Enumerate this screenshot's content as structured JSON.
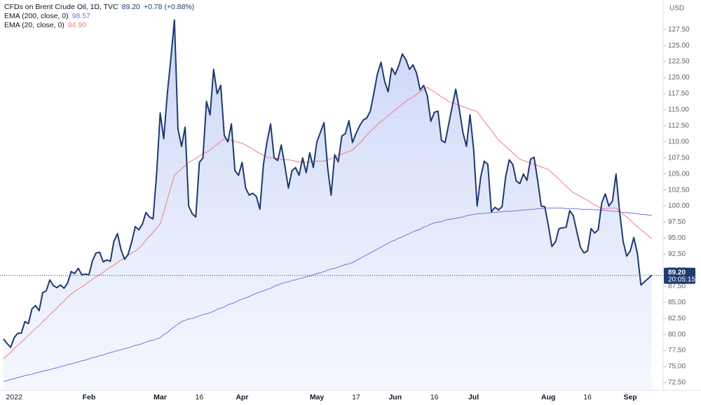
{
  "chart_data": {
    "type": "line",
    "y_unit": "USD",
    "countdown": "20:05:15",
    "ylim": [
      71.3,
      132.1
    ],
    "yticks": [
      {
        "value": 72.5,
        "label": "72.50"
      },
      {
        "value": 75,
        "label": "75.00"
      },
      {
        "value": 77.5,
        "label": "77.50"
      },
      {
        "value": 80,
        "label": "80.00"
      },
      {
        "value": 82.5,
        "label": "82.50"
      },
      {
        "value": 85,
        "label": "85.00"
      },
      {
        "value": 87.5,
        "label": "87.50"
      },
      {
        "value": 90,
        "label": "90.00"
      },
      {
        "value": 92.5,
        "label": "92.50"
      },
      {
        "value": 95,
        "label": "95.00"
      },
      {
        "value": 97.5,
        "label": "97.50"
      },
      {
        "value": 100,
        "label": "100.00"
      },
      {
        "value": 102.5,
        "label": "102.50"
      },
      {
        "value": 105,
        "label": "105.00"
      },
      {
        "value": 107.5,
        "label": "107.50"
      },
      {
        "value": 110,
        "label": "110.00"
      },
      {
        "value": 112.5,
        "label": "112.50"
      },
      {
        "value": 115,
        "label": "115.00"
      },
      {
        "value": 117.5,
        "label": "117.50"
      },
      {
        "value": 120,
        "label": "120.00"
      },
      {
        "value": 122.5,
        "label": "122.50"
      },
      {
        "value": 125,
        "label": "125.00"
      },
      {
        "value": 127.5,
        "label": "127.50"
      }
    ],
    "grid": false,
    "categories": [
      null,
      null,
      null,
      "2022",
      null,
      null,
      null,
      null,
      null,
      null,
      null,
      null,
      null,
      null,
      null,
      null,
      null,
      null,
      null,
      null,
      null,
      null,
      null,
      null,
      "Feb",
      null,
      null,
      null,
      null,
      null,
      null,
      null,
      null,
      null,
      null,
      null,
      null,
      null,
      null,
      null,
      null,
      null,
      null,
      null,
      "Mar",
      null,
      null,
      null,
      null,
      null,
      null,
      null,
      null,
      null,
      null,
      "16",
      null,
      null,
      null,
      null,
      null,
      null,
      null,
      null,
      null,
      null,
      null,
      "Apr",
      null,
      null,
      null,
      null,
      null,
      null,
      null,
      null,
      null,
      null,
      null,
      null,
      null,
      null,
      null,
      null,
      null,
      null,
      null,
      null,
      "May",
      null,
      null,
      null,
      null,
      null,
      null,
      null,
      null,
      null,
      null,
      "17",
      null,
      null,
      null,
      null,
      null,
      null,
      null,
      null,
      null,
      null,
      "Jun",
      null,
      null,
      null,
      null,
      null,
      null,
      null,
      null,
      null,
      null,
      "16",
      null,
      null,
      null,
      null,
      null,
      null,
      null,
      null,
      null,
      null,
      "Jul",
      null,
      null,
      null,
      null,
      null,
      null,
      null,
      null,
      null,
      null,
      null,
      null,
      null,
      null,
      null,
      null,
      null,
      null,
      null,
      null,
      "Aug",
      null,
      null,
      null,
      null,
      null,
      null,
      null,
      null,
      null,
      null,
      "16",
      null,
      null,
      null,
      null,
      null,
      null,
      null,
      null,
      null,
      null,
      null,
      "Sep",
      null,
      null,
      null,
      null,
      null,
      null
    ],
    "series": [
      {
        "name": "CFDs on Brent Crude Oil, 1D, TVC",
        "color": "#1e3a6e",
        "fill": true,
        "last_label": "89.20",
        "change_label": "+0.78 (+0.88%)",
        "values": [
          79.3,
          78.6,
          78.0,
          79.5,
          80.2,
          80.2,
          82.0,
          81.7,
          84.0,
          84.5,
          83.7,
          86.5,
          86.8,
          88.5,
          87.6,
          87.3,
          87.7,
          87.2,
          88.0,
          89.8,
          89.5,
          90.3,
          89.3,
          89.4,
          89.3,
          91.5,
          92.7,
          92.8,
          91.3,
          91.6,
          91.4,
          94.5,
          95.7,
          93.2,
          91.7,
          92.5,
          94.4,
          96.8,
          96.3,
          97.2,
          99.0,
          98.3,
          98.0,
          105.0,
          114.5,
          110.5,
          117.5,
          123.0,
          129.0,
          112.0,
          109.3,
          112.3,
          100.0,
          98.8,
          98.3,
          106.8,
          107.5,
          116.3,
          114.2,
          121.3,
          117.5,
          118.8,
          111.0,
          110.0,
          112.8,
          105.5,
          104.8,
          106.8,
          102.8,
          101.7,
          102.0,
          101.5,
          99.5,
          106.5,
          110.0,
          112.8,
          107.5,
          107.1,
          109.5,
          106.3,
          102.8,
          105.5,
          106.0,
          104.8,
          107.5,
          105.2,
          108.3,
          106.0,
          110.0,
          111.5,
          113.0,
          106.1,
          101.7,
          108.0,
          106.9,
          110.9,
          111.3,
          113.3,
          109.9,
          111.3,
          112.5,
          113.4,
          113.7,
          114.8,
          117.6,
          120.6,
          122.4,
          119.5,
          117.8,
          121.5,
          120.5,
          121.9,
          123.7,
          122.8,
          121.3,
          122.0,
          120.7,
          118.1,
          118.8,
          117.2,
          113.2,
          114.6,
          114.8,
          110.2,
          109.9,
          112.7,
          115.5,
          118.2,
          115.1,
          111.5,
          109.3,
          114.2,
          109.0,
          100.0,
          104.5,
          107.0,
          106.5,
          99.1,
          99.8,
          99.4,
          99.9,
          104.5,
          107.2,
          106.5,
          103.9,
          103.5,
          105.0,
          104.0,
          107.3,
          107.6,
          104.0,
          100.0,
          99.9,
          97.0,
          93.7,
          94.4,
          96.5,
          96.6,
          96.7,
          99.3,
          98.5,
          96.0,
          93.6,
          92.7,
          93.0,
          96.5,
          95.8,
          96.3,
          100.5,
          101.9,
          100.0,
          100.8,
          105.0,
          99.2,
          94.5,
          92.2,
          93.0,
          95.1,
          92.6,
          87.7,
          88.2,
          88.7,
          89.2
        ]
      },
      {
        "name": "EMA (200, close, 0)",
        "color": "#6b73e6",
        "last_label": "98.57",
        "values": [
          72.7,
          72.8,
          73.0,
          73.1,
          73.3,
          73.4,
          73.6,
          73.7,
          73.8,
          74.0,
          74.1,
          74.3,
          74.4,
          74.5,
          74.7,
          74.8,
          75.0,
          75.1,
          75.3,
          75.4,
          75.6,
          75.7,
          75.9,
          76.0,
          76.2,
          76.4,
          76.5,
          76.7,
          76.8,
          77.0,
          77.2,
          77.3,
          77.5,
          77.6,
          77.8,
          77.9,
          78.1,
          78.3,
          78.4,
          78.6,
          78.8,
          79.0,
          79.1,
          79.3,
          79.5,
          80.0,
          80.3,
          80.8,
          81.2,
          81.6,
          82.0,
          82.2,
          82.4,
          82.5,
          82.7,
          82.9,
          83.1,
          83.2,
          83.4,
          83.6,
          83.9,
          84.1,
          84.3,
          84.6,
          84.8,
          85.0,
          85.3,
          85.5,
          85.7,
          85.9,
          86.2,
          86.4,
          86.6,
          86.8,
          87.0,
          87.2,
          87.5,
          87.7,
          87.9,
          88.1,
          88.2,
          88.4,
          88.5,
          88.7,
          88.8,
          89.0,
          89.1,
          89.3,
          89.5,
          89.6,
          89.8,
          90.0,
          90.2,
          90.3,
          90.5,
          90.7,
          90.9,
          91.0,
          91.2,
          91.5,
          91.8,
          92.1,
          92.4,
          92.7,
          93.0,
          93.3,
          93.6,
          93.9,
          94.2,
          94.5,
          94.7,
          95.0,
          95.2,
          95.5,
          95.7,
          96.0,
          96.2,
          96.4,
          96.7,
          96.9,
          97.2,
          97.4,
          97.5,
          97.6,
          97.8,
          97.9,
          98.0,
          98.1,
          98.2,
          98.3,
          98.5,
          98.6,
          98.7,
          98.8,
          98.8,
          98.9,
          98.9,
          99.0,
          99.0,
          99.1,
          99.1,
          99.2,
          99.2,
          99.2,
          99.3,
          99.3,
          99.4,
          99.4,
          99.5,
          99.5,
          99.6,
          99.6,
          99.7,
          99.7,
          99.7,
          99.7,
          99.7,
          99.7,
          99.6,
          99.6,
          99.6,
          99.6,
          99.5,
          99.5,
          99.5,
          99.5,
          99.4,
          99.4,
          99.4,
          99.3,
          99.3,
          99.2,
          99.2,
          99.1,
          99.0,
          99.0,
          98.9,
          98.9,
          98.8,
          98.7,
          98.7,
          98.6,
          98.57
        ]
      },
      {
        "name": "EMA (20, close, 0)",
        "color": "#ef7c7c",
        "last_label": "94.90",
        "values": [
          76.2,
          76.7,
          77.2,
          77.8,
          78.3,
          78.8,
          79.3,
          79.9,
          80.4,
          80.9,
          81.4,
          82.0,
          82.5,
          83.1,
          83.6,
          84.1,
          84.7,
          85.2,
          85.8,
          86.3,
          86.7,
          87.1,
          87.4,
          87.8,
          88.2,
          88.6,
          89.0,
          89.3,
          89.7,
          90.1,
          90.5,
          90.8,
          91.2,
          91.6,
          91.9,
          92.3,
          92.7,
          93.0,
          93.4,
          94.0,
          94.7,
          95.3,
          95.9,
          96.6,
          97.2,
          99.1,
          101.0,
          102.9,
          104.8,
          105.3,
          105.8,
          106.3,
          106.8,
          107.1,
          107.4,
          107.8,
          108.1,
          108.4,
          108.7,
          109.2,
          109.6,
          110.1,
          110.5,
          110.4,
          110.2,
          110.1,
          109.9,
          109.8,
          109.5,
          109.2,
          108.9,
          108.5,
          108.2,
          107.9,
          107.6,
          107.5,
          107.5,
          107.4,
          107.3,
          107.2,
          107.2,
          107.1,
          107.0,
          106.9,
          106.8,
          106.8,
          106.9,
          107.0,
          107.0,
          107.0,
          107.0,
          107.2,
          107.4,
          107.6,
          107.9,
          108.1,
          108.3,
          108.5,
          108.7,
          109.3,
          109.8,
          110.4,
          111.0,
          111.6,
          112.1,
          112.7,
          113.2,
          113.6,
          114.1,
          114.5,
          115.0,
          115.4,
          115.9,
          116.3,
          116.7,
          117.0,
          117.4,
          117.8,
          118.1,
          118.5,
          118.1,
          117.8,
          117.4,
          117.0,
          116.7,
          116.3,
          116.1,
          115.9,
          115.7,
          115.5,
          115.3,
          115.1,
          114.9,
          114.7,
          114.0,
          113.2,
          112.5,
          111.8,
          111.0,
          110.3,
          109.8,
          109.3,
          108.8,
          108.3,
          107.8,
          107.3,
          107.1,
          106.9,
          106.7,
          106.5,
          106.3,
          106.1,
          105.9,
          105.7,
          105.2,
          104.7,
          104.2,
          103.6,
          103.1,
          102.6,
          102.1,
          101.8,
          101.5,
          101.2,
          100.9,
          100.5,
          100.2,
          99.9,
          99.6,
          99.6,
          99.7,
          99.7,
          99.7,
          99.2,
          98.7,
          98.3,
          97.8,
          97.3,
          96.8,
          96.3,
          95.9,
          95.4,
          94.9
        ]
      }
    ]
  }
}
